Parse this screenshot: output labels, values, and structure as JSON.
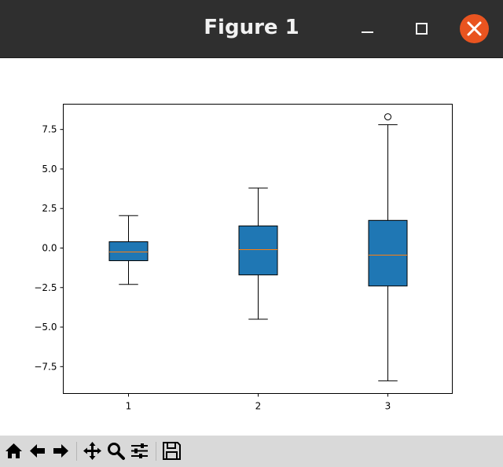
{
  "window": {
    "title": "Figure 1",
    "title_color": "#f2f2f2",
    "titlebar_color": "#2f2f2f",
    "close_color": "#e95420"
  },
  "toolbar": {
    "buttons": [
      {
        "name": "home-icon"
      },
      {
        "name": "back-arrow-icon"
      },
      {
        "name": "forward-arrow-icon"
      },
      {
        "name": "pan-icon"
      },
      {
        "name": "zoom-icon"
      },
      {
        "name": "configure-subplots-icon"
      },
      {
        "name": "save-icon"
      }
    ]
  },
  "chart_data": {
    "type": "boxplot",
    "title": "",
    "xlabel": "",
    "ylabel": "",
    "categories": [
      "1",
      "2",
      "3"
    ],
    "ylim": [
      -9.2,
      9.1
    ],
    "yticks": [
      -7.5,
      -5.0,
      -2.5,
      0.0,
      2.5,
      5.0,
      7.5
    ],
    "ytick_labels": [
      "−7.5",
      "−5.0",
      "−2.5",
      "0.0",
      "2.5",
      "5.0",
      "7.5"
    ],
    "xtick_labels": [
      "1",
      "2",
      "3"
    ],
    "box_color": "#1f77b4",
    "median_color": "#ff7f0e",
    "grid": false,
    "boxes": [
      {
        "category": "1",
        "whisker_low": -2.3,
        "q1": -0.8,
        "median": -0.25,
        "q3": 0.4,
        "whisker_high": 2.05,
        "outliers": []
      },
      {
        "category": "2",
        "whisker_low": -4.5,
        "q1": -1.7,
        "median": -0.1,
        "q3": 1.4,
        "whisker_high": 3.8,
        "outliers": []
      },
      {
        "category": "3",
        "whisker_low": -8.4,
        "q1": -2.4,
        "median": -0.45,
        "q3": 1.75,
        "whisker_high": 7.8,
        "outliers": [
          8.3
        ]
      }
    ]
  }
}
